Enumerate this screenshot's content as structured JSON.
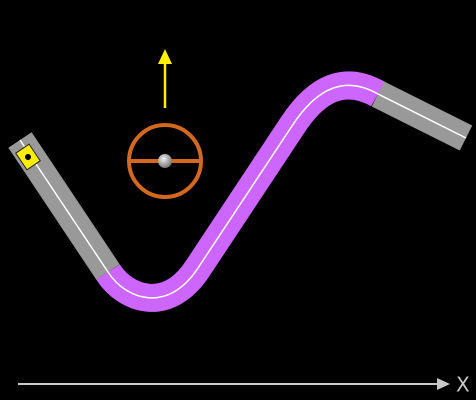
{
  "axis": {
    "label": "X"
  }
}
